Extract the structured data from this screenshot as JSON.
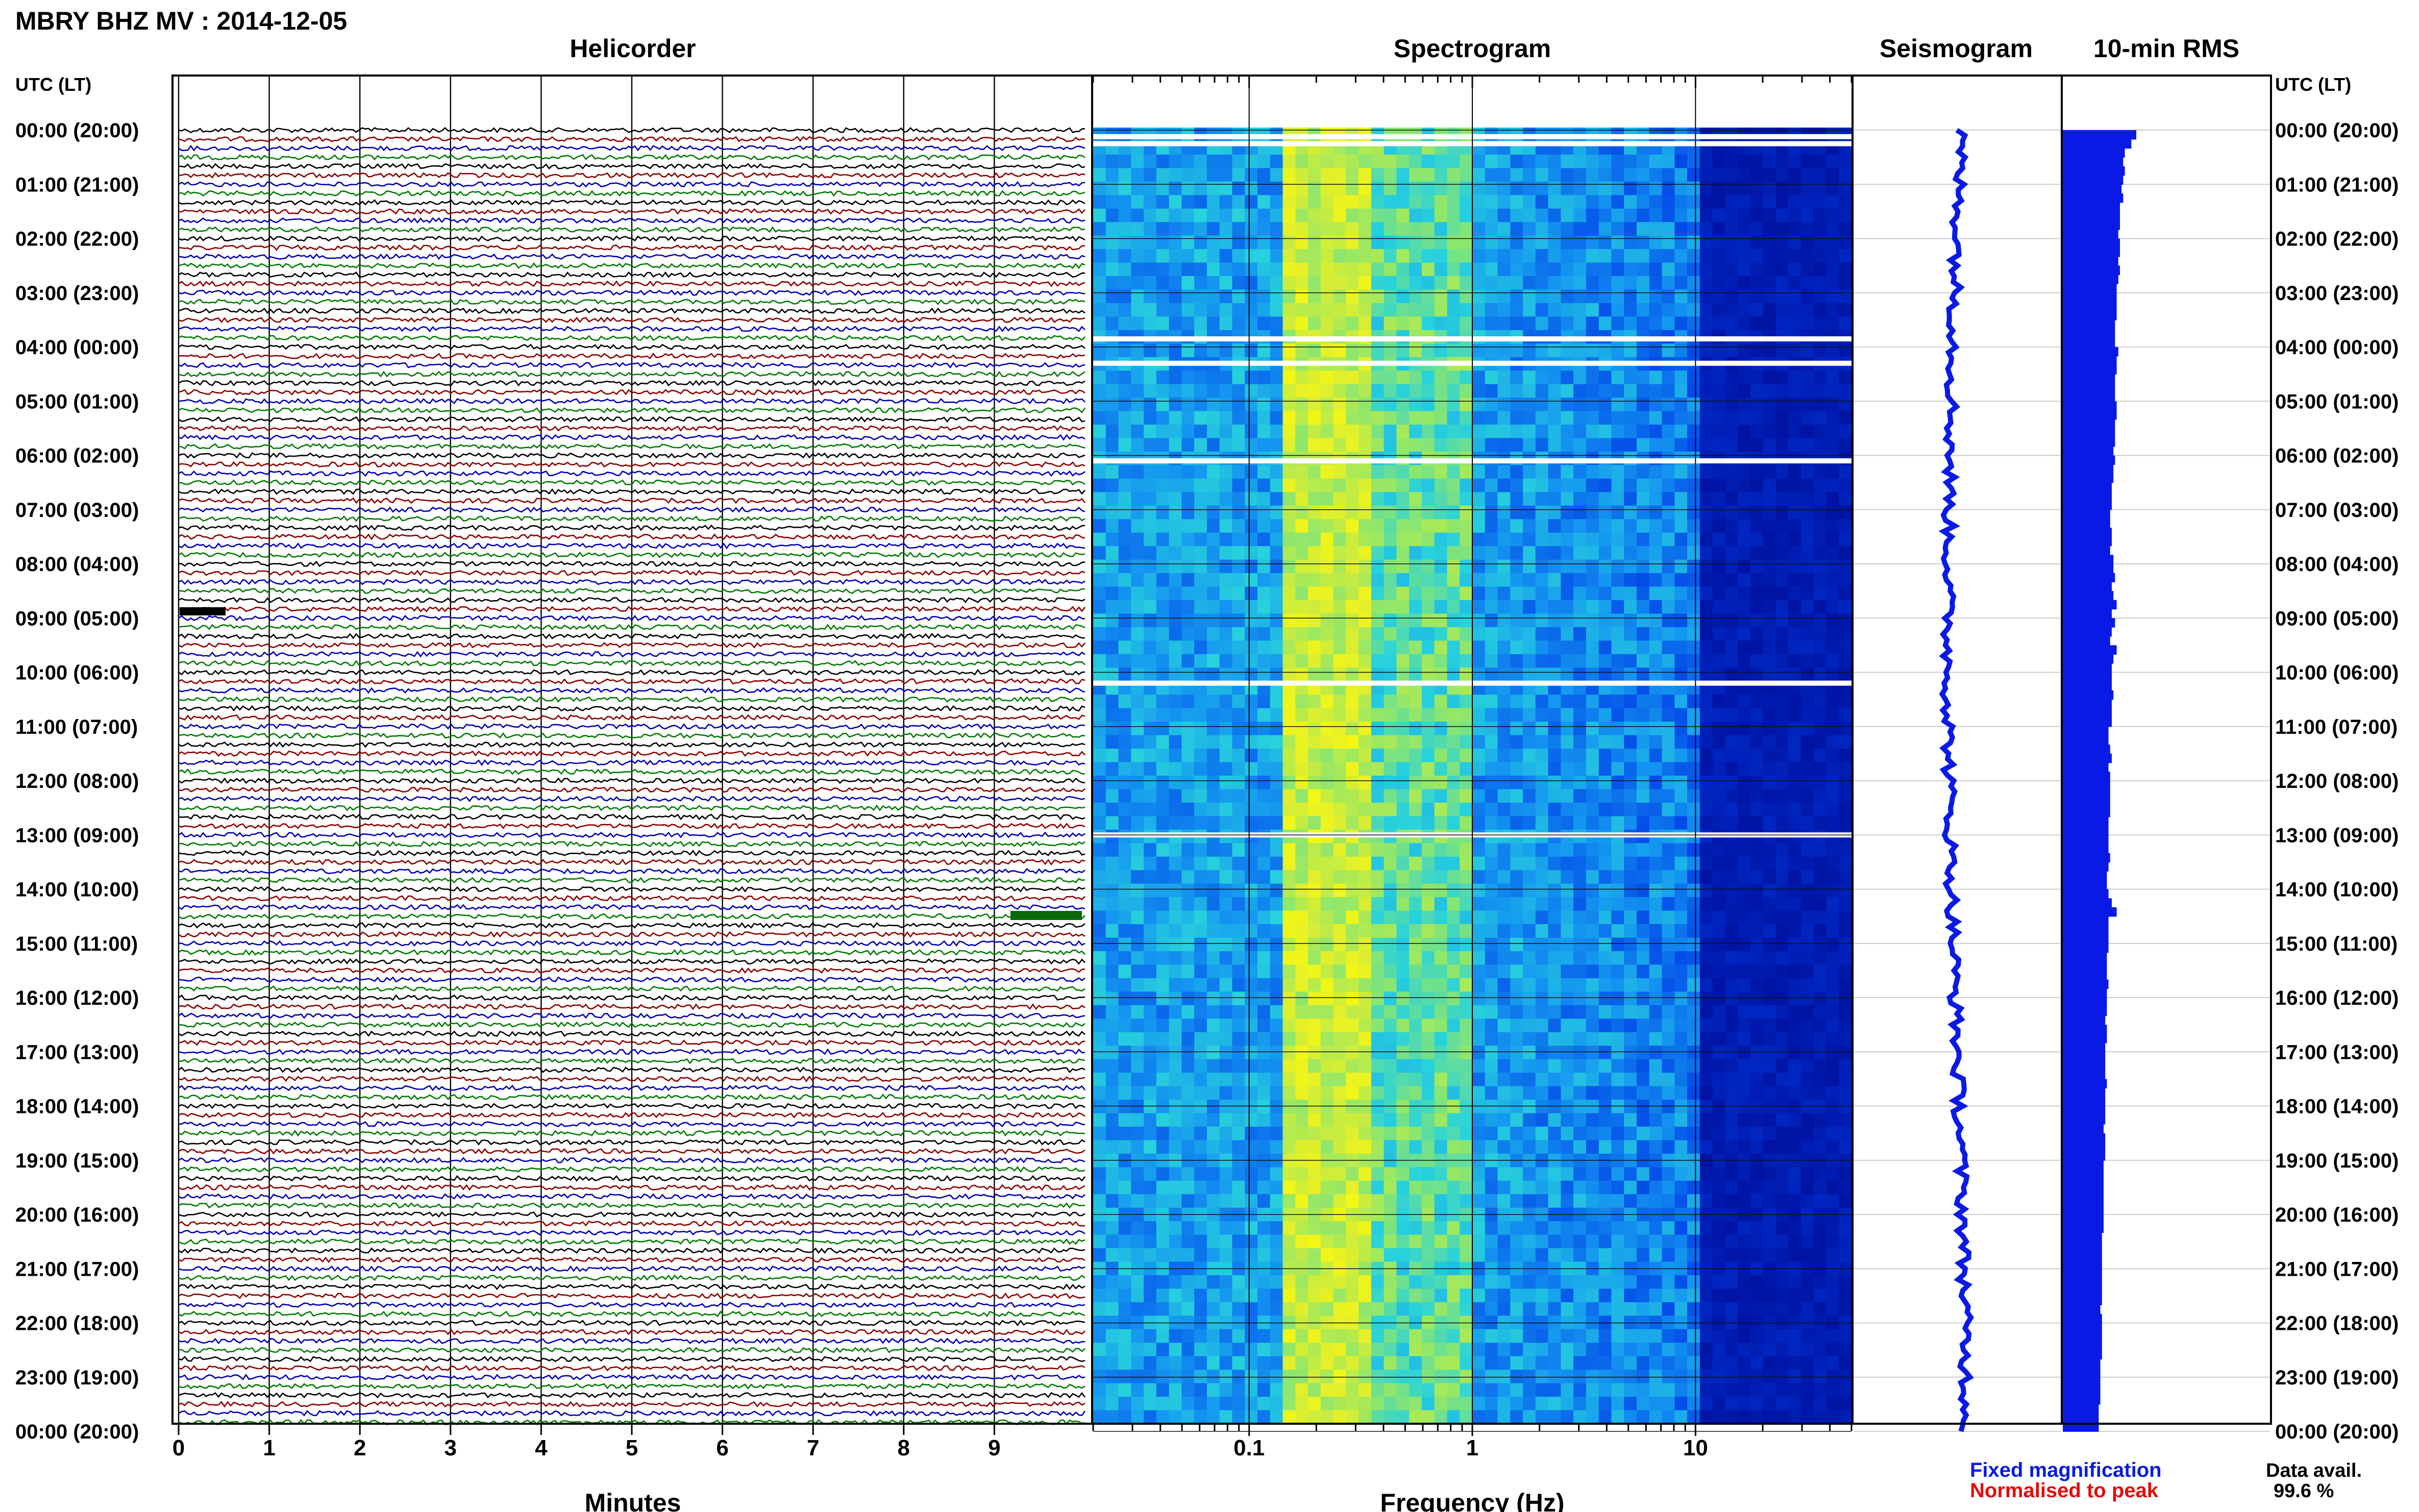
{
  "header": {
    "title": "MBRY BHZ MV : 2014-12-05"
  },
  "panels": {
    "helicorder": "Helicorder",
    "spectrogram": "Spectrogram",
    "seismogram": "Seismogram",
    "rms": "10-min RMS"
  },
  "axes": {
    "left_label": "UTC (LT)",
    "right_label": "UTC (LT)",
    "helicorder_x_label": "Minutes",
    "spectrogram_x_label": "Frequency (Hz)"
  },
  "legend": {
    "fixed": "Fixed magnification",
    "normalised": "Normalised to peak",
    "fixed_color": "#0a1ae6",
    "normalised_color": "#e60a0a"
  },
  "availability": {
    "label": "Data avail.",
    "value": "99.6 %"
  },
  "chart_data": [
    {
      "type": "line",
      "title": "Helicorder",
      "xlabel": "Minutes",
      "xlim": [
        0,
        10
      ],
      "x_ticks": [
        "0",
        "1",
        "2",
        "3",
        "4",
        "5",
        "6",
        "7",
        "8",
        "9"
      ],
      "time_labels": [
        "00:00 (20:00)",
        "01:00 (21:00)",
        "02:00 (22:00)",
        "03:00 (23:00)",
        "04:00 (00:00)",
        "05:00 (01:00)",
        "06:00 (02:00)",
        "07:00 (03:00)",
        "08:00 (04:00)",
        "09:00 (05:00)",
        "10:00 (06:00)",
        "11:00 (07:00)",
        "12:00 (08:00)",
        "13:00 (09:00)",
        "14:00 (10:00)",
        "15:00 (11:00)",
        "16:00 (12:00)",
        "17:00 (13:00)",
        "18:00 (14:00)",
        "19:00 (15:00)",
        "20:00 (16:00)",
        "21:00 (17:00)",
        "22:00 (18:00)",
        "23:00 (19:00)",
        "00:00 (20:00)"
      ],
      "trace_colors": [
        "#000000",
        "#8b0000",
        "#0000b3",
        "#007a00"
      ],
      "lines_per_hour": 6,
      "hours": 24
    },
    {
      "type": "heatmap",
      "title": "Spectrogram",
      "xlabel": "Frequency (Hz)",
      "xscale": "log",
      "xlim": [
        0.02,
        50
      ],
      "x_ticks": [
        "0.1",
        "1",
        "10"
      ],
      "gap_hours": [
        0.12,
        0.25,
        3.85,
        4.3,
        6.1,
        10.2,
        13.0
      ]
    },
    {
      "type": "line",
      "title": "Seismogram",
      "color": "#0a1ae6"
    },
    {
      "type": "bar",
      "title": "10-min RMS",
      "color": "#0a1ae6",
      "orientation": "horizontal",
      "values": [
        4.5,
        4.2,
        3.8,
        3.7,
        3.8,
        3.7,
        3.6,
        3.7,
        3.5,
        3.5,
        3.5,
        3.4,
        3.5,
        3.5,
        3.4,
        3.5,
        3.4,
        3.3,
        3.3,
        3.3,
        3.3,
        3.2,
        3.2,
        3.2,
        3.4,
        3.3,
        3.3,
        3.2,
        3.2,
        3.2,
        3.3,
        3.3,
        3.2,
        3.2,
        3.2,
        3.1,
        3.2,
        3.1,
        3.1,
        3.0,
        3.0,
        3.0,
        2.9,
        2.9,
        3.0,
        3.0,
        2.9,
        3.1,
        3.1,
        3.2,
        3.0,
        3.1,
        3.3,
        3.0,
        3.2,
        3.0,
        2.9,
        3.3,
        3.1,
        3.0,
        3.0,
        3.0,
        3.1,
        3.0,
        3.0,
        3.0,
        2.8,
        2.8,
        2.9,
        3.0,
        2.8,
        2.9,
        2.9,
        2.9,
        2.9,
        2.9,
        2.8,
        2.8,
        2.8,
        2.8,
        2.9,
        2.8,
        2.7,
        2.7,
        2.8,
        3.0,
        3.3,
        2.8,
        2.8,
        2.8,
        2.8,
        2.7,
        2.7,
        2.7,
        2.8,
        2.7,
        2.7,
        2.7,
        2.6,
        2.7,
        2.7,
        2.6,
        2.6,
        2.6,
        2.6,
        2.7,
        2.6,
        2.6,
        2.6,
        2.6,
        2.5,
        2.6,
        2.6,
        2.6,
        2.5,
        2.5,
        2.5,
        2.5,
        2.5,
        2.5,
        2.5,
        2.5,
        2.4,
        2.4,
        2.4,
        2.4,
        2.4,
        2.4,
        2.4,
        2.4,
        2.3,
        2.4,
        2.4,
        2.4,
        2.4,
        2.4,
        2.3,
        2.3,
        2.3,
        2.3,
        2.3,
        2.2,
        2.2,
        2.2
      ]
    }
  ]
}
